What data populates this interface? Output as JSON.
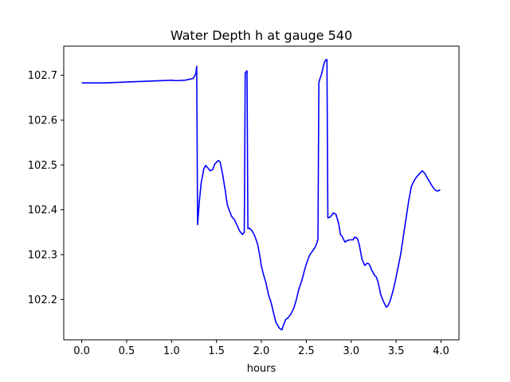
{
  "chart_data": {
    "type": "line",
    "title": "Water Depth h at gauge 540",
    "xlabel": "hours",
    "ylabel": "",
    "xlim": [
      -0.2,
      4.2
    ],
    "ylim": [
      102.11,
      102.765
    ],
    "xticks": [
      0.0,
      0.5,
      1.0,
      1.5,
      2.0,
      2.5,
      3.0,
      3.5,
      4.0
    ],
    "xtick_labels": [
      "0.0",
      "0.5",
      "1.0",
      "1.5",
      "2.0",
      "2.5",
      "3.0",
      "3.5",
      "4.0"
    ],
    "yticks": [
      102.2,
      102.3,
      102.4,
      102.5,
      102.6,
      102.7
    ],
    "ytick_labels": [
      "102.2",
      "102.3",
      "102.4",
      "102.5",
      "102.6",
      "102.7"
    ],
    "grid": false,
    "series": [
      {
        "color": "#0000ff",
        "points": [
          [
            0.0,
            102.683
          ],
          [
            0.25,
            102.683
          ],
          [
            0.5,
            102.685
          ],
          [
            0.75,
            102.687
          ],
          [
            1.0,
            102.689
          ],
          [
            1.05,
            102.688
          ],
          [
            1.15,
            102.689
          ],
          [
            1.24,
            102.693
          ],
          [
            1.27,
            102.703
          ],
          [
            1.28,
            102.72
          ],
          [
            1.29,
            102.367
          ],
          [
            1.31,
            102.42
          ],
          [
            1.33,
            102.46
          ],
          [
            1.36,
            102.492
          ],
          [
            1.38,
            102.499
          ],
          [
            1.41,
            102.492
          ],
          [
            1.43,
            102.487
          ],
          [
            1.46,
            102.49
          ],
          [
            1.48,
            102.502
          ],
          [
            1.52,
            102.51
          ],
          [
            1.54,
            102.507
          ],
          [
            1.57,
            102.478
          ],
          [
            1.6,
            102.44
          ],
          [
            1.62,
            102.412
          ],
          [
            1.64,
            102.4
          ],
          [
            1.67,
            102.385
          ],
          [
            1.7,
            102.378
          ],
          [
            1.73,
            102.365
          ],
          [
            1.76,
            102.352
          ],
          [
            1.79,
            102.345
          ],
          [
            1.81,
            102.35
          ],
          [
            1.82,
            102.705
          ],
          [
            1.84,
            102.71
          ],
          [
            1.85,
            102.358
          ],
          [
            1.87,
            102.359
          ],
          [
            1.9,
            102.352
          ],
          [
            1.93,
            102.34
          ],
          [
            1.96,
            102.322
          ],
          [
            1.98,
            102.3
          ],
          [
            2.0,
            102.275
          ],
          [
            2.02,
            102.258
          ],
          [
            2.05,
            102.238
          ],
          [
            2.08,
            102.21
          ],
          [
            2.11,
            102.192
          ],
          [
            2.13,
            102.175
          ],
          [
            2.16,
            102.15
          ],
          [
            2.18,
            102.143
          ],
          [
            2.2,
            102.136
          ],
          [
            2.23,
            102.132
          ],
          [
            2.24,
            102.14
          ],
          [
            2.27,
            102.155
          ],
          [
            2.3,
            102.16
          ],
          [
            2.33,
            102.168
          ],
          [
            2.36,
            102.18
          ],
          [
            2.39,
            102.2
          ],
          [
            2.42,
            102.225
          ],
          [
            2.45,
            102.242
          ],
          [
            2.48,
            102.265
          ],
          [
            2.51,
            102.285
          ],
          [
            2.54,
            102.3
          ],
          [
            2.57,
            102.308
          ],
          [
            2.6,
            102.317
          ],
          [
            2.62,
            102.327
          ],
          [
            2.63,
            102.335
          ],
          [
            2.64,
            102.685
          ],
          [
            2.67,
            102.703
          ],
          [
            2.7,
            102.728
          ],
          [
            2.72,
            102.735
          ],
          [
            2.73,
            102.735
          ],
          [
            2.74,
            102.382
          ],
          [
            2.76,
            102.383
          ],
          [
            2.78,
            102.387
          ],
          [
            2.8,
            102.393
          ],
          [
            2.83,
            102.39
          ],
          [
            2.86,
            102.37
          ],
          [
            2.88,
            102.345
          ],
          [
            2.9,
            102.34
          ],
          [
            2.93,
            102.328
          ],
          [
            2.96,
            102.332
          ],
          [
            2.99,
            102.333
          ],
          [
            3.02,
            102.333
          ],
          [
            3.04,
            102.339
          ],
          [
            3.07,
            102.336
          ],
          [
            3.09,
            102.322
          ],
          [
            3.12,
            102.29
          ],
          [
            3.15,
            102.276
          ],
          [
            3.18,
            102.281
          ],
          [
            3.2,
            102.279
          ],
          [
            3.23,
            102.265
          ],
          [
            3.26,
            102.254
          ],
          [
            3.28,
            102.25
          ],
          [
            3.3,
            102.238
          ],
          [
            3.33,
            102.21
          ],
          [
            3.36,
            102.195
          ],
          [
            3.39,
            102.183
          ],
          [
            3.41,
            102.186
          ],
          [
            3.43,
            102.195
          ],
          [
            3.46,
            102.215
          ],
          [
            3.49,
            102.24
          ],
          [
            3.52,
            102.27
          ],
          [
            3.55,
            102.3
          ],
          [
            3.58,
            102.34
          ],
          [
            3.61,
            102.38
          ],
          [
            3.64,
            102.42
          ],
          [
            3.67,
            102.452
          ],
          [
            3.7,
            102.465
          ],
          [
            3.73,
            102.474
          ],
          [
            3.76,
            102.48
          ],
          [
            3.79,
            102.487
          ],
          [
            3.82,
            102.481
          ],
          [
            3.85,
            102.47
          ],
          [
            3.88,
            102.46
          ],
          [
            3.91,
            102.45
          ],
          [
            3.94,
            102.443
          ],
          [
            3.97,
            102.442
          ],
          [
            3.99,
            102.445
          ]
        ]
      }
    ]
  }
}
